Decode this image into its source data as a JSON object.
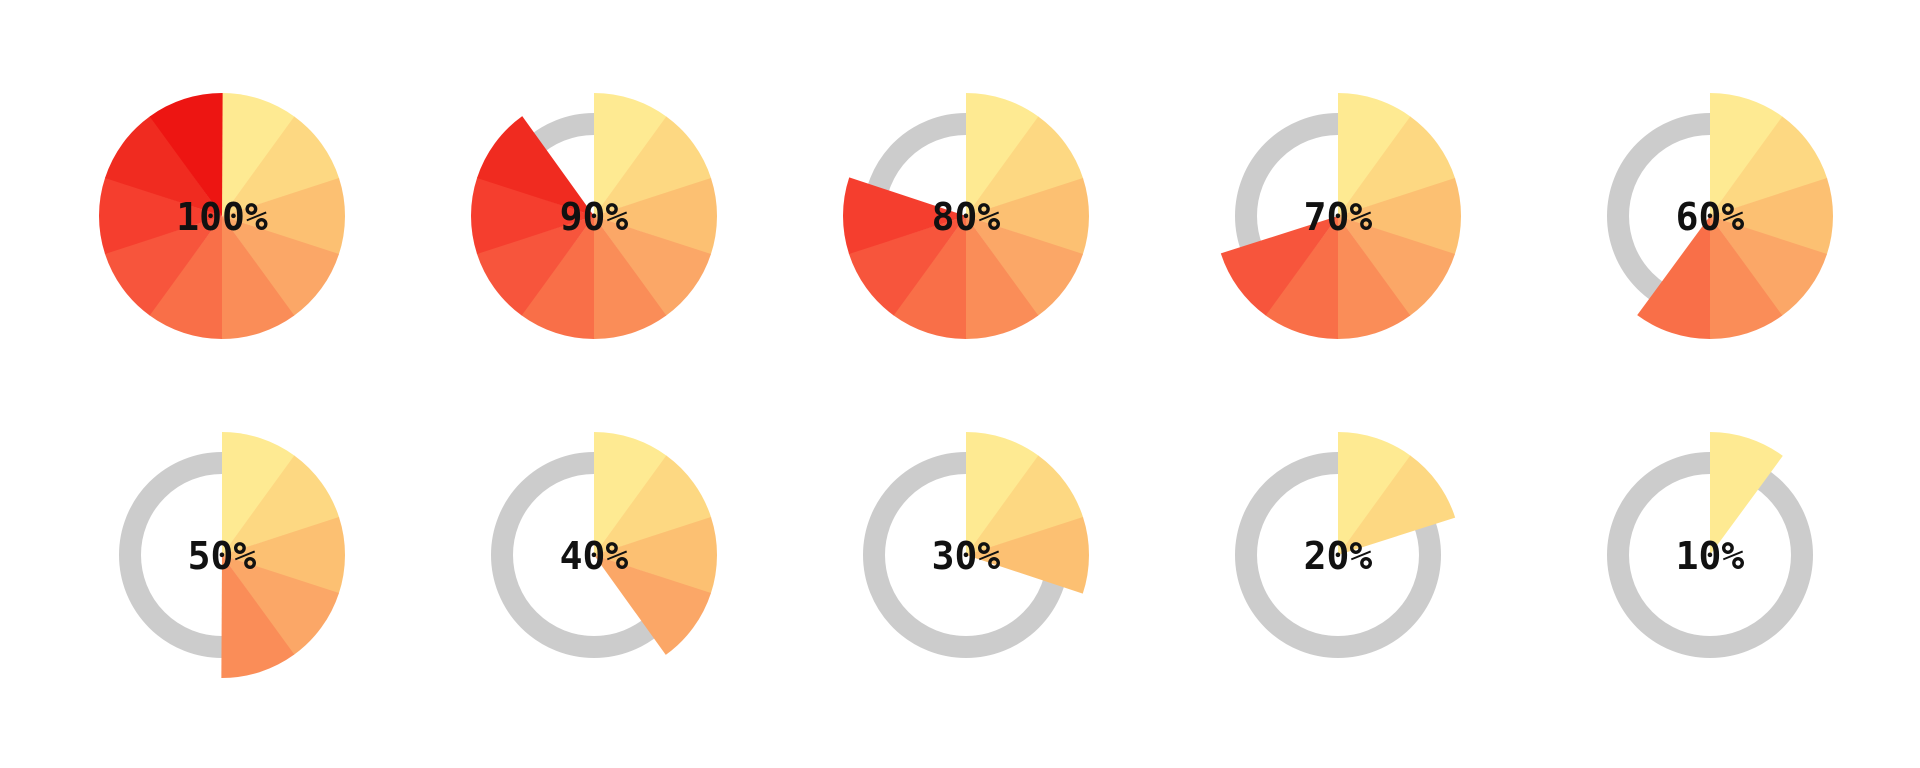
{
  "chart_data": {
    "type": "pie",
    "grid": false,
    "segments_per_chart": 10,
    "segment_colors": [
      "#FEEA92",
      "#FDD882",
      "#FCC072",
      "#FBA767",
      "#FA8D58",
      "#F96F48",
      "#F7553C",
      "#F53E2E",
      "#F02B20",
      "#ED1512"
    ],
    "track_color": "#CCCCCC",
    "charts": [
      {
        "label": "100%",
        "value": 100
      },
      {
        "label": "90%",
        "value": 90
      },
      {
        "label": "80%",
        "value": 80
      },
      {
        "label": "70%",
        "value": 70
      },
      {
        "label": "60%",
        "value": 60
      },
      {
        "label": "50%",
        "value": 50
      },
      {
        "label": "40%",
        "value": 40
      },
      {
        "label": "30%",
        "value": 30
      },
      {
        "label": "20%",
        "value": 20
      },
      {
        "label": "10%",
        "value": 10
      }
    ]
  }
}
